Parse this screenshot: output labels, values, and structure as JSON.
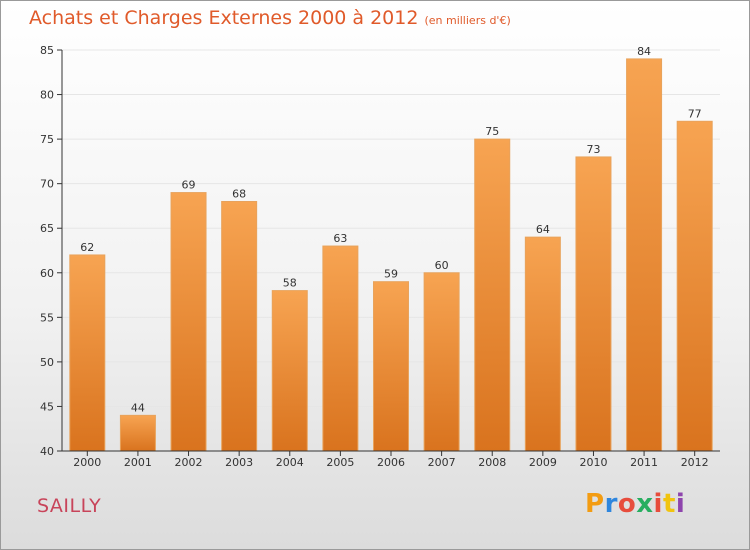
{
  "title": "Achats et Charges Externes 2000 à 2012",
  "unit": "(en milliers d'€)",
  "commune": "SAILLY",
  "brand": {
    "letters": [
      "P",
      "r",
      "o",
      "x",
      "i",
      "t",
      "i"
    ],
    "colors": [
      "#f39c12",
      "#2e86de",
      "#e74c3c",
      "#27ae60",
      "#e74c3c",
      "#f1c40f",
      "#8e44ad"
    ]
  },
  "colors": {
    "title": "#e05a2a",
    "bar_top": "#f7a452",
    "bar_bottom": "#d9731e",
    "axis": "#333333",
    "grid": "#e6e6e6"
  },
  "chart_data": {
    "type": "bar",
    "title": "Achats et Charges Externes 2000 à 2012",
    "categories": [
      "2000",
      "2001",
      "2002",
      "2003",
      "2004",
      "2005",
      "2006",
      "2007",
      "2008",
      "2009",
      "2010",
      "2011",
      "2012"
    ],
    "values": [
      62,
      44,
      69,
      68,
      58,
      63,
      59,
      60,
      75,
      64,
      73,
      84,
      77
    ],
    "ylim": [
      40,
      85
    ],
    "yticks": [
      40,
      45,
      50,
      55,
      60,
      65,
      70,
      75,
      80,
      85
    ],
    "grid": true,
    "legend": "none"
  }
}
